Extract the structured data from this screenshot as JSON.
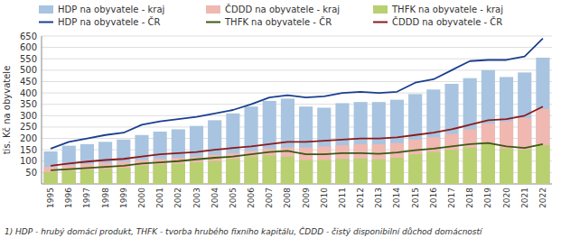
{
  "chart_data": {
    "type": "bar",
    "ylabel": "tis. Kč na obyvatele",
    "annotations": [
      "1) HDP - hrubý domácí produkt, THFK - tvorba hrubého fixního kapitálu, ČDDD - čistý disponibilní důchod domácností"
    ],
    "categories": [
      "1995",
      "1996",
      "1997",
      "1998",
      "1999",
      "2000",
      "2001",
      "2002",
      "2003",
      "2004",
      "2005",
      "2006",
      "2007",
      "2008",
      "2009",
      "2010",
      "2011",
      "2012",
      "2013",
      "2014",
      "2015",
      "2016",
      "2017",
      "2018",
      "2019",
      "2020",
      "2021",
      "2022"
    ],
    "series": [
      {
        "name": "HDP na obyvatele - kraj",
        "type": "bar",
        "color": "#a8c4e0",
        "values": [
          143,
          168,
          175,
          185,
          195,
          215,
          230,
          240,
          255,
          280,
          310,
          340,
          365,
          375,
          340,
          335,
          355,
          360,
          360,
          370,
          395,
          415,
          440,
          465,
          500,
          470,
          490,
          555
        ]
      },
      {
        "name": "ČDDD na obyvatele - kraj",
        "type": "bar",
        "color": "#f0b8b0",
        "values": [
          75,
          82,
          88,
          92,
          98,
          105,
          110,
          115,
          120,
          128,
          135,
          145,
          155,
          160,
          160,
          165,
          170,
          175,
          175,
          180,
          195,
          205,
          220,
          240,
          265,
          275,
          290,
          330
        ]
      },
      {
        "name": "THFK na obyvatele - kraj",
        "type": "bar",
        "color": "#b8d070",
        "values": [
          52,
          58,
          62,
          66,
          70,
          80,
          85,
          88,
          95,
          100,
          110,
          120,
          125,
          120,
          105,
          105,
          110,
          112,
          108,
          115,
          130,
          140,
          150,
          160,
          175,
          155,
          150,
          170
        ]
      },
      {
        "name": "HDP na obyvatele - ČR",
        "type": "line",
        "color": "#1a3f8f",
        "values": [
          155,
          185,
          200,
          215,
          225,
          260,
          275,
          285,
          295,
          310,
          325,
          350,
          380,
          390,
          380,
          385,
          400,
          405,
          400,
          405,
          445,
          460,
          500,
          540,
          545,
          545,
          560,
          640
        ]
      },
      {
        "name": "THFK na obyvatele - ČR",
        "type": "line",
        "color": "#3a5a10",
        "values": [
          60,
          65,
          70,
          75,
          80,
          90,
          95,
          100,
          108,
          115,
          120,
          130,
          140,
          145,
          130,
          130,
          135,
          135,
          132,
          138,
          148,
          155,
          165,
          175,
          180,
          165,
          158,
          175
        ]
      },
      {
        "name": "ČDDD na obyvatele - ČR",
        "type": "line",
        "color": "#8b1a1a",
        "values": [
          80,
          90,
          98,
          105,
          110,
          120,
          130,
          135,
          140,
          150,
          158,
          165,
          175,
          185,
          185,
          190,
          195,
          200,
          200,
          205,
          215,
          225,
          240,
          260,
          280,
          285,
          300,
          340
        ]
      }
    ],
    "ylim": [
      0,
      650
    ],
    "yticks": [
      50,
      100,
      150,
      200,
      250,
      300,
      350,
      400,
      450,
      500,
      550,
      600,
      650
    ],
    "grid": true,
    "legend": "top"
  }
}
